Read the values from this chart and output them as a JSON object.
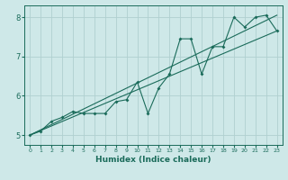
{
  "xlabel": "Humidex (Indice chaleur)",
  "ylabel": "",
  "background_color": "#cee8e8",
  "grid_color": "#b0d0d0",
  "line_color": "#1a6b5a",
  "xlim": [
    -0.5,
    23.5
  ],
  "ylim": [
    4.75,
    8.3
  ],
  "yticks": [
    5,
    6,
    7,
    8
  ],
  "xticks": [
    0,
    1,
    2,
    3,
    4,
    5,
    6,
    7,
    8,
    9,
    10,
    11,
    12,
    13,
    14,
    15,
    16,
    17,
    18,
    19,
    20,
    21,
    22,
    23
  ],
  "series": [
    [
      0,
      5.0
    ],
    [
      1,
      5.1
    ],
    [
      2,
      5.35
    ],
    [
      3,
      5.45
    ],
    [
      4,
      5.6
    ],
    [
      5,
      5.55
    ],
    [
      6,
      5.55
    ],
    [
      7,
      5.55
    ],
    [
      8,
      5.85
    ],
    [
      9,
      5.9
    ],
    [
      10,
      6.35
    ],
    [
      11,
      5.55
    ],
    [
      12,
      6.2
    ],
    [
      13,
      6.55
    ],
    [
      14,
      7.45
    ],
    [
      15,
      7.45
    ],
    [
      16,
      6.55
    ],
    [
      17,
      7.25
    ],
    [
      18,
      7.25
    ],
    [
      19,
      8.0
    ],
    [
      20,
      7.75
    ],
    [
      21,
      8.0
    ],
    [
      22,
      8.05
    ],
    [
      23,
      7.65
    ]
  ],
  "line2": [
    [
      0,
      5.0
    ],
    [
      23,
      7.65
    ]
  ],
  "line3": [
    [
      0,
      5.0
    ],
    [
      23,
      8.05
    ]
  ]
}
